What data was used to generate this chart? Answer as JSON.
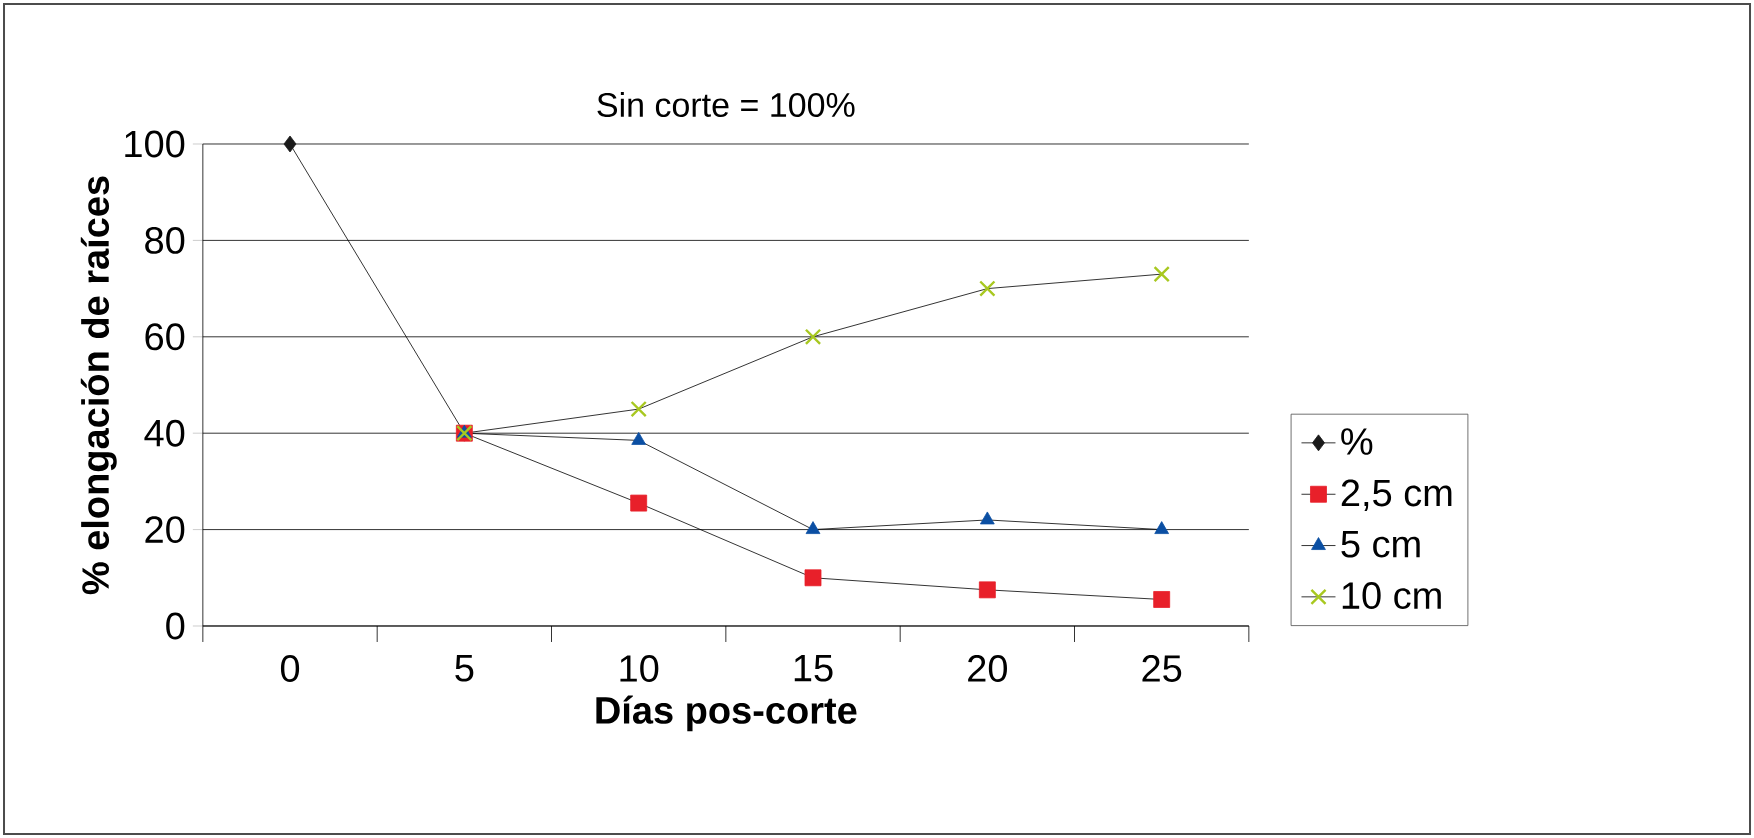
{
  "chart_data": {
    "type": "line",
    "title": "Sin corte = 100%",
    "xlabel": "Días pos-corte",
    "ylabel": "% elongación de raíces",
    "categories": [
      "0",
      "5",
      "10",
      "15",
      "20",
      "25"
    ],
    "series": [
      {
        "name": "%",
        "color": "#1a1a1a",
        "marker": "diamond",
        "values": [
          100,
          40,
          null,
          null,
          null,
          null
        ]
      },
      {
        "name": "2,5 cm",
        "color": "#e8202a",
        "marker": "square",
        "values": [
          null,
          40,
          25.5,
          10,
          7.5,
          5.5
        ]
      },
      {
        "name": "5 cm",
        "color": "#0b4fa3",
        "marker": "triangle",
        "values": [
          null,
          40,
          38.5,
          20,
          22,
          20
        ]
      },
      {
        "name": "10 cm",
        "color": "#a8c820",
        "marker": "cross",
        "values": [
          null,
          40,
          45,
          60,
          70,
          73
        ]
      }
    ],
    "ylim": [
      0,
      100
    ],
    "yticks": [
      0,
      20,
      40,
      60,
      80,
      100
    ],
    "grid": "y",
    "legend": "bottom right"
  }
}
